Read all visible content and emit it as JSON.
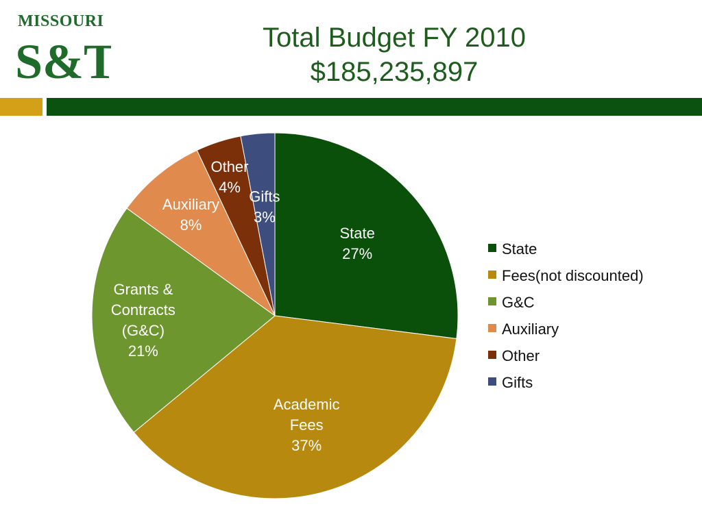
{
  "logo": {
    "top": "MISSOURI",
    "main": "S&T"
  },
  "title": {
    "line1": "Total Budget FY 2010",
    "line2": "$185,235,897"
  },
  "colors": {
    "gold": "#d4a017",
    "green": "#0b5210",
    "title": "#1e5c1e"
  },
  "chart_data": {
    "type": "pie",
    "title": "Total Budget FY 2010",
    "subtitle": "$185,235,897",
    "legend_position": "right",
    "slices": [
      {
        "legend": "State",
        "label": [
          "State",
          "27%"
        ],
        "value": 27,
        "color": "#0a4f0a",
        "label_color": "#ffffff"
      },
      {
        "legend": "Fees(not discounted)",
        "label": [
          "Academic",
          "Fees",
          "37%"
        ],
        "value": 37,
        "color": "#b8890f",
        "label_color": "#ffffff"
      },
      {
        "legend": "G&C",
        "label": [
          "Grants &",
          "Contracts",
          "(G&C)",
          "21%"
        ],
        "value": 21,
        "color": "#6e962e",
        "label_color": "#ffffff"
      },
      {
        "legend": "Auxiliary",
        "label": [
          "Auxiliary",
          "8%"
        ],
        "value": 8,
        "color": "#e08a4e",
        "label_color": "#ffffff"
      },
      {
        "legend": "Other",
        "label": [
          "Other",
          "4%"
        ],
        "value": 4,
        "color": "#7c300a",
        "label_color": "#ffffff"
      },
      {
        "legend": "Gifts",
        "label": [
          "Gifts",
          "3%"
        ],
        "value": 3,
        "color": "#3c4d7e",
        "label_color": "#ffffff"
      }
    ]
  }
}
